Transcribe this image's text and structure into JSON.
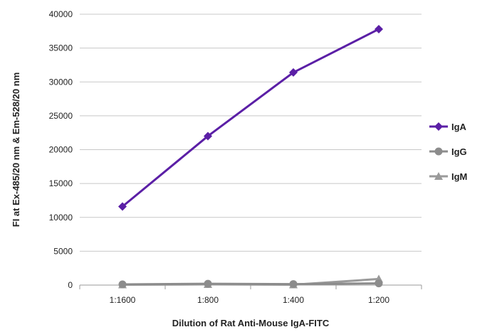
{
  "chart_data": {
    "type": "line",
    "title": "",
    "xlabel": "Dilution of Rat Anti-Mouse IgA-FITC",
    "ylabel": "FI at Ex-485/20 nm & Em-528/20 nm",
    "categories": [
      "1:1600",
      "1:800",
      "1:400",
      "1:200"
    ],
    "ylim": [
      0,
      40000
    ],
    "yticks": [
      0,
      5000,
      10000,
      15000,
      20000,
      25000,
      30000,
      35000,
      40000
    ],
    "grid": true,
    "legend_position": "right",
    "series": [
      {
        "name": "IgA",
        "values": [
          11600,
          22000,
          31400,
          37800
        ],
        "color": "#5b1fa6",
        "marker": "diamond"
      },
      {
        "name": "IgG",
        "values": [
          100,
          200,
          150,
          250
        ],
        "color": "#8c8c8c",
        "marker": "circle"
      },
      {
        "name": "IgM",
        "values": [
          50,
          100,
          50,
          900
        ],
        "color": "#9a9a9a",
        "marker": "triangle"
      }
    ]
  }
}
